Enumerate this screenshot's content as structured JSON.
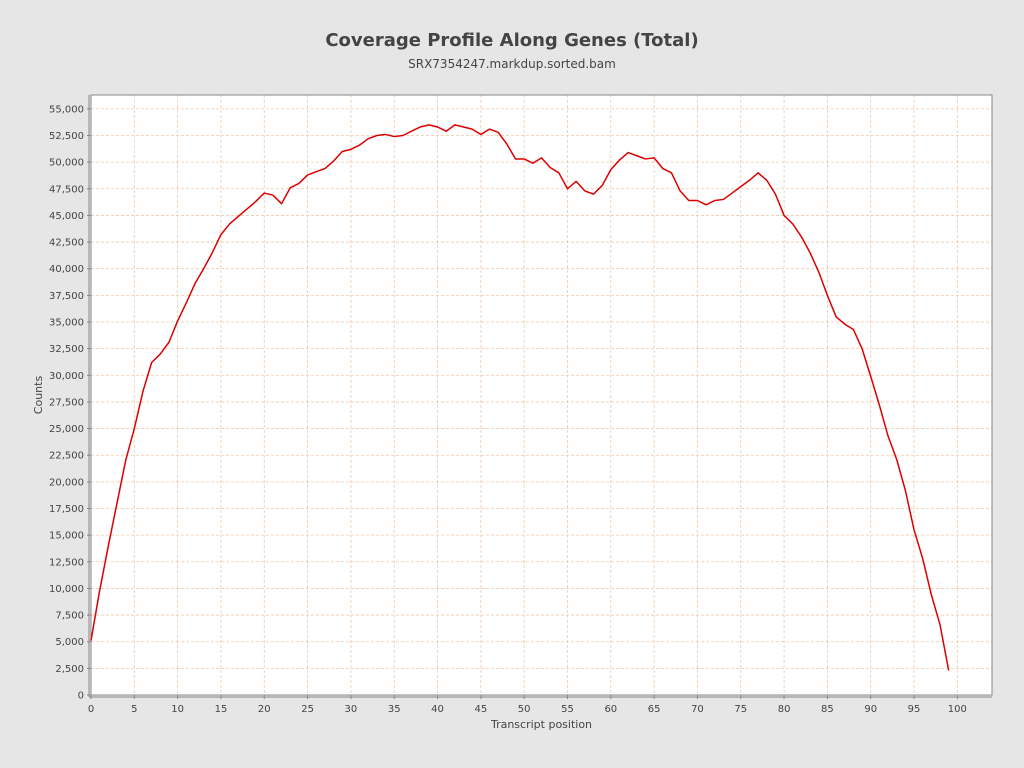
{
  "chart_data": {
    "type": "line",
    "title": "Coverage Profile Along Genes (Total)",
    "subtitle": "SRX7354247.markdup.sorted.bam",
    "xlabel": "Transcript position",
    "ylabel": "Counts",
    "xlim": [
      0,
      104
    ],
    "ylim": [
      0,
      56300
    ],
    "x_ticks": [
      0,
      5,
      10,
      15,
      20,
      25,
      30,
      35,
      40,
      45,
      50,
      55,
      60,
      65,
      70,
      75,
      80,
      85,
      90,
      95,
      100
    ],
    "y_ticks": [
      0,
      2500,
      5000,
      7500,
      10000,
      12500,
      15000,
      17500,
      20000,
      22500,
      25000,
      27500,
      30000,
      32500,
      35000,
      37500,
      40000,
      42500,
      45000,
      47500,
      50000,
      52500,
      55000
    ],
    "y_tick_labels": [
      "0",
      "2,500",
      "5,000",
      "7,500",
      "10,000",
      "12,500",
      "15,000",
      "17,500",
      "20,000",
      "22,500",
      "25,000",
      "27,500",
      "30,000",
      "32,500",
      "35,000",
      "37,500",
      "40,000",
      "42,500",
      "45,000",
      "47,500",
      "50,000",
      "52,500",
      "55,000"
    ],
    "grid": true,
    "colors": {
      "line": "#dd0000",
      "grid": "#f0c8a8",
      "plot_background": "#ffffff",
      "page_background": "#e6e6e6"
    },
    "series": [
      {
        "x": [
          0,
          1,
          2,
          3,
          4,
          5,
          6,
          7,
          8,
          9,
          10,
          11,
          12,
          13,
          14,
          15,
          16,
          17,
          18,
          19,
          20,
          21,
          22,
          23,
          24,
          25,
          26,
          27,
          28,
          29,
          30,
          31,
          32,
          33,
          34,
          35,
          36,
          37,
          38,
          39,
          40,
          41,
          42,
          43,
          44,
          45,
          46,
          47,
          48,
          49,
          50,
          51,
          52,
          53,
          54,
          55,
          56,
          57,
          58,
          59,
          60,
          61,
          62,
          63,
          64,
          65,
          66,
          67,
          68,
          69,
          70,
          71,
          72,
          73,
          74,
          75,
          76,
          77,
          78,
          79,
          80,
          81,
          82,
          83,
          84,
          85,
          86,
          87,
          88,
          89,
          90,
          91,
          92,
          93,
          94,
          95,
          96,
          97,
          98,
          99
        ],
        "values": [
          5100,
          9800,
          14000,
          18000,
          22000,
          25000,
          28500,
          31200,
          32000,
          33100,
          35100,
          36800,
          38600,
          40000,
          41500,
          43200,
          44200,
          44900,
          45600,
          46300,
          47100,
          46900,
          46100,
          47600,
          48000,
          48800,
          49100,
          49400,
          50100,
          51000,
          51200,
          51600,
          52200,
          52500,
          52600,
          52400,
          52500,
          52900,
          53300,
          53500,
          53300,
          52900,
          53500,
          53300,
          53100,
          52600,
          53100,
          52800,
          51700,
          50300,
          50300,
          49900,
          50400,
          49500,
          49000,
          47500,
          48200,
          47300,
          47000,
          47800,
          49300,
          50200,
          50900,
          50600,
          50300,
          50400,
          49400,
          49000,
          47300,
          46400,
          46400,
          46000,
          46400,
          46500,
          47100,
          47700,
          48300,
          49000,
          48300,
          47000,
          45000,
          44200,
          43000,
          41500,
          39700,
          37500,
          35500,
          34800,
          34300,
          32500,
          29900,
          27200,
          24300,
          22100,
          19200,
          15500,
          12800,
          9400,
          6600,
          2300
        ]
      }
    ]
  }
}
